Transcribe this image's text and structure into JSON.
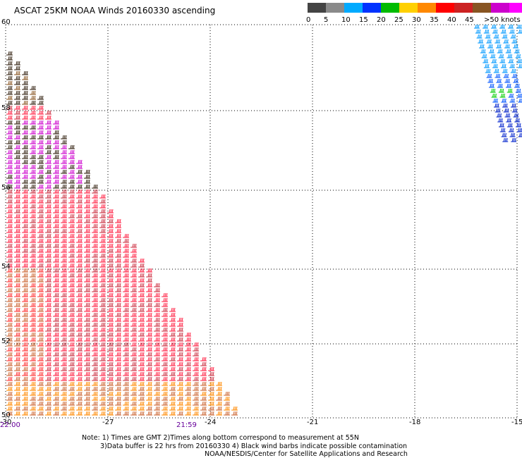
{
  "title": "ASCAT 25KM NOAA Winds 20160330 ascending",
  "colorbar": {
    "labels": [
      "0",
      "5",
      "10",
      "15",
      "20",
      "25",
      "30",
      "35",
      "40",
      "45"
    ],
    "last_label": ">50 knots",
    "colors": [
      "#444444",
      "#8a8a8a",
      "#00aaff",
      "#0033ff",
      "#00bb00",
      "#ffd000",
      "#ff8800",
      "#ff0000",
      "#cc2222",
      "#885522",
      "#cc00cc",
      "#ff00ff",
      "#7700aa"
    ]
  },
  "axes": {
    "lat_labels": [
      "60",
      "58",
      "56",
      "54",
      "52",
      "50"
    ],
    "lon_labels": [
      "-30",
      "-27",
      "-24",
      "-21",
      "-18",
      "-15"
    ],
    "time_labels": [
      "22:00",
      "21:59"
    ]
  },
  "notes": {
    "line1": "Note: 1) Times are GMT 2)Times along bottom correspond to measurement at 55N",
    "line2": "3)Data buffer is 22 hrs from 20160330 4) Black wind barbs indicate possible contamination",
    "line3": "NOAA/NESDIS/Center for Satellite Applications and Research"
  }
}
